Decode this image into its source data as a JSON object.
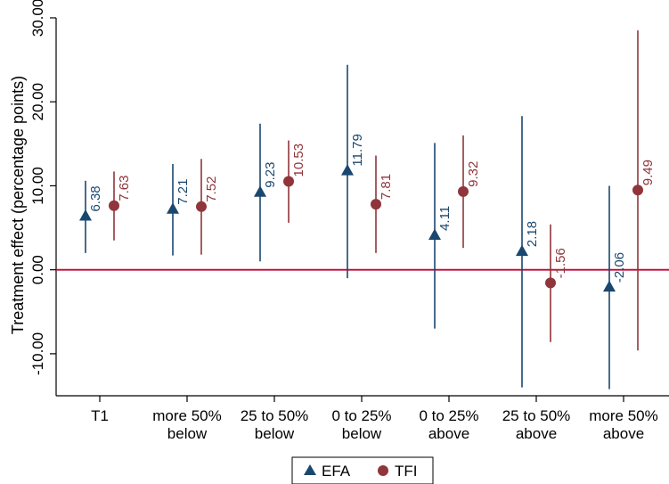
{
  "chart_data": {
    "type": "scatter",
    "ylabel": "Treatment effect (percentage points)",
    "ylim": [
      -15,
      30
    ],
    "y_ticks": [
      "-10.00",
      "0.00",
      "10.00",
      "20.00",
      "30.00"
    ],
    "y_tick_values": [
      -10,
      0,
      10,
      20,
      30
    ],
    "reference_line": 0,
    "grid": false,
    "legend_position": "bottom",
    "categories": [
      [
        "T1"
      ],
      [
        "more 50%",
        "below"
      ],
      [
        "25 to 50%",
        "below"
      ],
      [
        "0 to 25%",
        "below"
      ],
      [
        "0 to 25%",
        "above"
      ],
      [
        "25 to 50%",
        "above"
      ],
      [
        "more 50%",
        "above"
      ]
    ],
    "series": [
      {
        "name": "EFA",
        "marker": "triangle",
        "color": "#1a476f",
        "values": [
          6.38,
          7.21,
          9.23,
          11.79,
          4.11,
          2.18,
          -2.06
        ],
        "labels": [
          "6.38",
          "7.21",
          "9.23",
          "11.79",
          "4.11",
          "2.18",
          "-2.06"
        ],
        "ci_low": [
          2.0,
          1.7,
          1.0,
          -1.0,
          -7.0,
          -14.0,
          -14.2
        ],
        "ci_high": [
          10.6,
          12.6,
          17.4,
          24.4,
          15.1,
          18.3,
          10.0
        ]
      },
      {
        "name": "TFI",
        "marker": "circle",
        "color": "#90353b",
        "values": [
          7.63,
          7.52,
          10.53,
          7.81,
          9.32,
          -1.56,
          9.49
        ],
        "labels": [
          "7.63",
          "7.52",
          "10.53",
          "7.81",
          "9.32",
          "-1.56",
          "9.49"
        ],
        "ci_low": [
          3.5,
          1.8,
          5.6,
          2.0,
          2.6,
          -8.6,
          -9.6
        ],
        "ci_high": [
          11.7,
          13.2,
          15.4,
          13.6,
          16.0,
          5.4,
          28.5
        ]
      }
    ],
    "colors": {
      "reference_line": "#c10534",
      "axis": "#000000"
    }
  }
}
